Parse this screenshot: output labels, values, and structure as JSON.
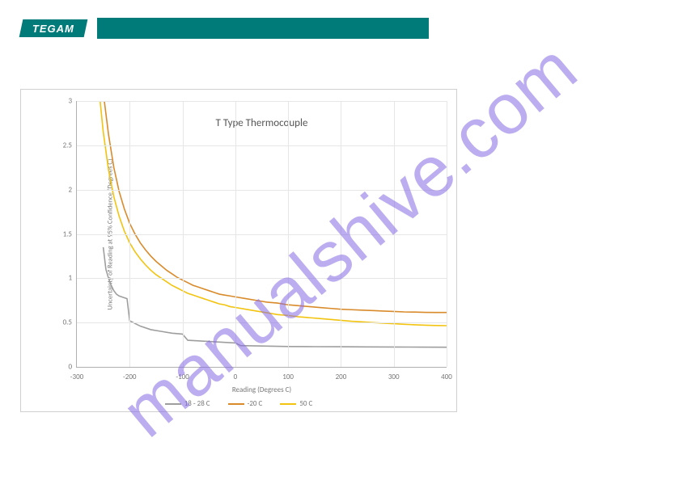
{
  "logo": {
    "text": "TEGAM"
  },
  "watermark": {
    "text": "manualshive.com",
    "color": "rgba(133,105,230,0.55)"
  },
  "chart": {
    "type": "line",
    "title": "T Type Thermocouple",
    "title_fontsize": 13,
    "xlabel": "Reading (Degrees C)",
    "ylabel": "Uncertainty of Reading at 95% Confidence (Degrees C)",
    "label_fontsize": 9,
    "xlim": [
      -300,
      400
    ],
    "ylim": [
      0,
      3
    ],
    "xtick_step": 100,
    "ytick_step": 0.5,
    "xticks": [
      "-300",
      "-200",
      "-100",
      "0",
      "100",
      "200",
      "300",
      "400"
    ],
    "yticks": [
      "0",
      "0.5",
      "1",
      "1.5",
      "2",
      "2.5",
      "3"
    ],
    "background_color": "#ffffff",
    "grid_color": "#e6e6e6",
    "axis_color": "#b0b0b0",
    "line_width": 1.6,
    "series": [
      {
        "name": "18 - 28 C",
        "color": "#9e9e9e",
        "data": [
          [
            -250,
            1.35
          ],
          [
            -245,
            1.1
          ],
          [
            -240,
            1.0
          ],
          [
            -235,
            0.92
          ],
          [
            -230,
            0.86
          ],
          [
            -225,
            0.82
          ],
          [
            -220,
            0.8
          ],
          [
            -215,
            0.79
          ],
          [
            -210,
            0.78
          ],
          [
            -205,
            0.77
          ],
          [
            -200,
            0.52
          ],
          [
            -180,
            0.46
          ],
          [
            -160,
            0.42
          ],
          [
            -140,
            0.4
          ],
          [
            -120,
            0.38
          ],
          [
            -100,
            0.37
          ],
          [
            -90,
            0.3
          ],
          [
            -60,
            0.29
          ],
          [
            -30,
            0.28
          ],
          [
            0,
            0.27
          ],
          [
            10,
            0.24
          ],
          [
            50,
            0.235
          ],
          [
            100,
            0.23
          ],
          [
            150,
            0.228
          ],
          [
            200,
            0.227
          ],
          [
            250,
            0.225
          ],
          [
            300,
            0.224
          ],
          [
            350,
            0.223
          ],
          [
            400,
            0.222
          ]
        ]
      },
      {
        "name": "-20 C",
        "color": "#d98b2b",
        "data": [
          [
            -248,
            3.0
          ],
          [
            -240,
            2.62
          ],
          [
            -230,
            2.25
          ],
          [
            -220,
            1.98
          ],
          [
            -210,
            1.78
          ],
          [
            -200,
            1.62
          ],
          [
            -190,
            1.5
          ],
          [
            -180,
            1.4
          ],
          [
            -170,
            1.32
          ],
          [
            -160,
            1.25
          ],
          [
            -150,
            1.19
          ],
          [
            -140,
            1.14
          ],
          [
            -130,
            1.09
          ],
          [
            -120,
            1.05
          ],
          [
            -110,
            1.01
          ],
          [
            -100,
            0.98
          ],
          [
            -90,
            0.95
          ],
          [
            -80,
            0.92
          ],
          [
            -70,
            0.9
          ],
          [
            -60,
            0.88
          ],
          [
            -50,
            0.86
          ],
          [
            -40,
            0.84
          ],
          [
            -30,
            0.82
          ],
          [
            -20,
            0.81
          ],
          [
            -10,
            0.8
          ],
          [
            0,
            0.79
          ],
          [
            20,
            0.77
          ],
          [
            40,
            0.75
          ],
          [
            60,
            0.73
          ],
          [
            80,
            0.72
          ],
          [
            100,
            0.7
          ],
          [
            120,
            0.69
          ],
          [
            140,
            0.68
          ],
          [
            160,
            0.67
          ],
          [
            180,
            0.66
          ],
          [
            200,
            0.65
          ],
          [
            220,
            0.645
          ],
          [
            240,
            0.64
          ],
          [
            260,
            0.635
          ],
          [
            280,
            0.63
          ],
          [
            300,
            0.625
          ],
          [
            320,
            0.62
          ],
          [
            340,
            0.618
          ],
          [
            360,
            0.615
          ],
          [
            380,
            0.614
          ],
          [
            400,
            0.614
          ]
        ]
      },
      {
        "name": "50 C",
        "color": "#f2c40f",
        "data": [
          [
            -256,
            3.0
          ],
          [
            -250,
            2.65
          ],
          [
            -240,
            2.22
          ],
          [
            -230,
            1.92
          ],
          [
            -220,
            1.7
          ],
          [
            -210,
            1.53
          ],
          [
            -200,
            1.4
          ],
          [
            -190,
            1.3
          ],
          [
            -180,
            1.22
          ],
          [
            -170,
            1.15
          ],
          [
            -160,
            1.09
          ],
          [
            -150,
            1.04
          ],
          [
            -140,
            1.0
          ],
          [
            -130,
            0.96
          ],
          [
            -120,
            0.92
          ],
          [
            -110,
            0.89
          ],
          [
            -100,
            0.86
          ],
          [
            -90,
            0.83
          ],
          [
            -80,
            0.81
          ],
          [
            -70,
            0.79
          ],
          [
            -60,
            0.77
          ],
          [
            -50,
            0.75
          ],
          [
            -40,
            0.73
          ],
          [
            -30,
            0.71
          ],
          [
            -20,
            0.7
          ],
          [
            -10,
            0.68
          ],
          [
            0,
            0.67
          ],
          [
            20,
            0.65
          ],
          [
            40,
            0.63
          ],
          [
            60,
            0.61
          ],
          [
            80,
            0.59
          ],
          [
            100,
            0.58
          ],
          [
            120,
            0.565
          ],
          [
            140,
            0.555
          ],
          [
            160,
            0.545
          ],
          [
            180,
            0.535
          ],
          [
            200,
            0.525
          ],
          [
            220,
            0.515
          ],
          [
            240,
            0.508
          ],
          [
            260,
            0.5
          ],
          [
            280,
            0.493
          ],
          [
            300,
            0.487
          ],
          [
            320,
            0.48
          ],
          [
            340,
            0.475
          ],
          [
            360,
            0.47
          ],
          [
            380,
            0.467
          ],
          [
            400,
            0.465
          ]
        ]
      }
    ]
  }
}
